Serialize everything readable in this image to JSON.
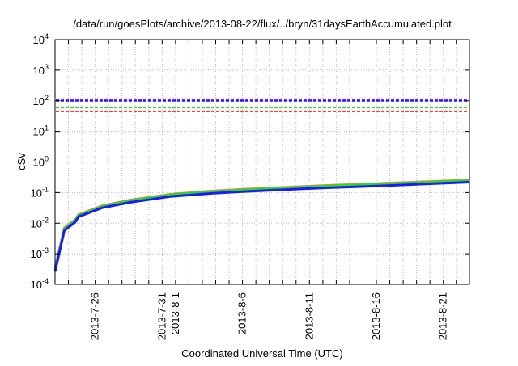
{
  "chart_data": {
    "type": "line",
    "title": "/data/run/goesPlots/archive/2013-08-22/flux/../bryn/31daysEarthAccumulated.plot",
    "xlabel": "Coordinated Universal Time (UTC)",
    "ylabel": "cSv",
    "x_units": "days since 2013-7-23 00:00 UTC",
    "xlim": [
      0,
      30.95
    ],
    "ylim": [
      0.0001,
      10000
    ],
    "yscale": "log",
    "grid": true,
    "legend": "none",
    "x_ticks": [
      {
        "day": 3,
        "label": "2013-7-26"
      },
      {
        "day": 8,
        "label": "2013-7-31"
      },
      {
        "day": 9,
        "label": "2013-8-1"
      },
      {
        "day": 14,
        "label": "2013-8-6"
      },
      {
        "day": 19,
        "label": "2013-8-11"
      },
      {
        "day": 24,
        "label": "2013-8-16"
      },
      {
        "day": 29,
        "label": "2013-8-21"
      }
    ],
    "y_ticks": [
      {
        "base": "10",
        "exp": "-4",
        "value": 0.0001
      },
      {
        "base": "10",
        "exp": "-3",
        "value": 0.001
      },
      {
        "base": "10",
        "exp": "-2",
        "value": 0.01
      },
      {
        "base": "10",
        "exp": "-1",
        "value": 0.1
      },
      {
        "base": "10",
        "exp": "0",
        "value": 1
      },
      {
        "base": "10",
        "exp": "1",
        "value": 10
      },
      {
        "base": "10",
        "exp": "2",
        "value": 100
      },
      {
        "base": "10",
        "exp": "3",
        "value": 1000
      },
      {
        "base": "10",
        "exp": "4",
        "value": 10000
      }
    ],
    "thresholds": [
      {
        "value": 112,
        "color": "#a020f0"
      },
      {
        "value": 100,
        "color": "#1a1aff"
      },
      {
        "value": 60,
        "color": "#22dd22"
      },
      {
        "value": 45,
        "color": "#ff2222"
      }
    ],
    "series": [
      {
        "color": "#e08a40",
        "points": [
          [
            0,
            0.00035
          ],
          [
            0.3,
            0.0013
          ],
          [
            0.7,
            0.0072
          ],
          [
            1.5,
            0.013
          ],
          [
            1.75,
            0.019
          ],
          [
            3.5,
            0.037
          ],
          [
            5.6,
            0.057
          ],
          [
            8.6,
            0.088
          ],
          [
            11.6,
            0.112
          ],
          [
            14,
            0.128
          ],
          [
            19.9,
            0.168
          ],
          [
            23.9,
            0.196
          ],
          [
            30.95,
            0.26
          ]
        ]
      },
      {
        "color": "#22dd22",
        "points": [
          [
            0,
            0.00032
          ],
          [
            0.3,
            0.0012
          ],
          [
            0.7,
            0.0067
          ],
          [
            1.5,
            0.012
          ],
          [
            1.75,
            0.018
          ],
          [
            3.5,
            0.035
          ],
          [
            5.6,
            0.054
          ],
          [
            8.6,
            0.084
          ],
          [
            11.6,
            0.106
          ],
          [
            14,
            0.121
          ],
          [
            19.9,
            0.16
          ],
          [
            23.9,
            0.186
          ],
          [
            30.95,
            0.245
          ]
        ]
      },
      {
        "color": "#1a1aff",
        "points": [
          [
            0,
            0.00026
          ],
          [
            0.3,
            0.001
          ],
          [
            0.7,
            0.0058
          ],
          [
            1.5,
            0.0107
          ],
          [
            1.75,
            0.0162
          ],
          [
            3.5,
            0.0316
          ],
          [
            5.6,
            0.0479
          ],
          [
            8.6,
            0.0741
          ],
          [
            11.6,
            0.0933
          ],
          [
            14,
            0.107
          ],
          [
            19.9,
            0.141
          ],
          [
            23.9,
            0.162
          ],
          [
            30.95,
            0.219
          ]
        ]
      }
    ]
  }
}
